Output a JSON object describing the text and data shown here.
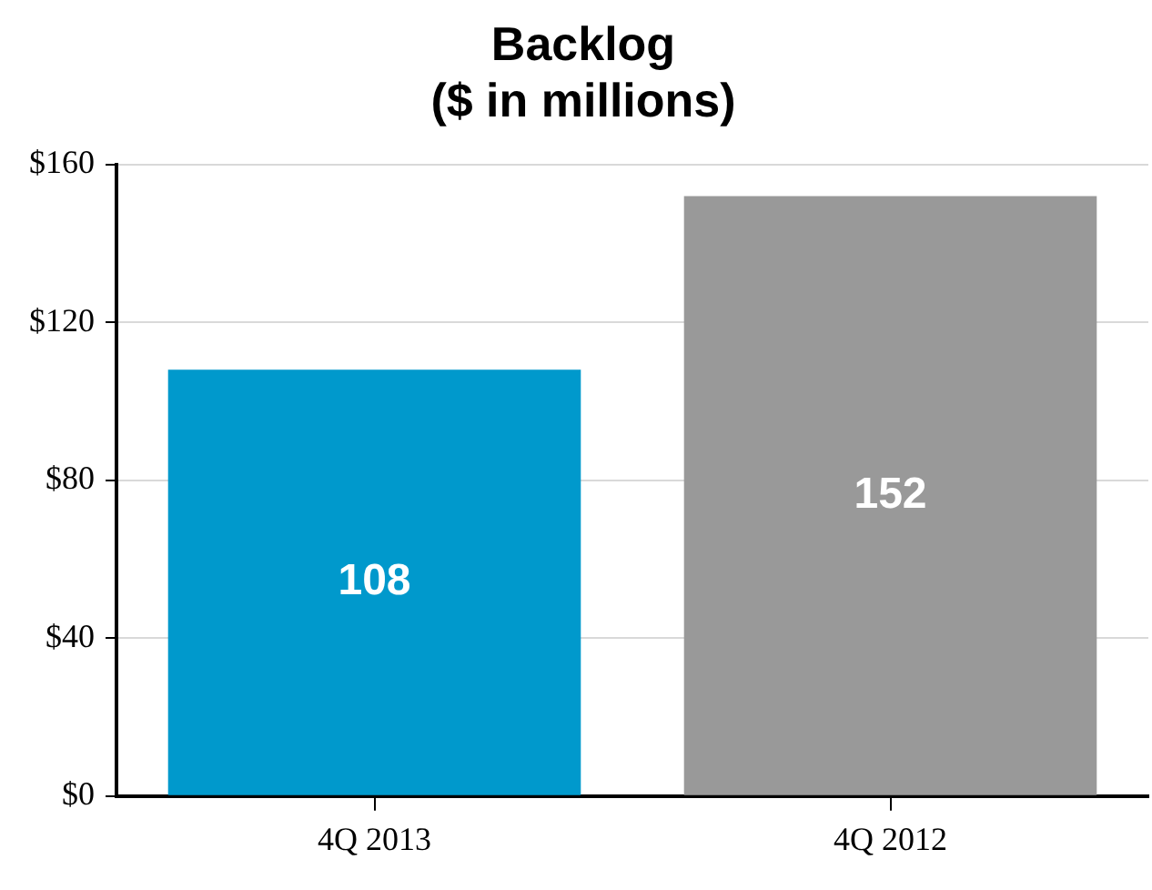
{
  "chart_data": {
    "type": "bar",
    "title": "Backlog",
    "subtitle": "($ in millions)",
    "categories": [
      "4Q 2013",
      "4Q 2012"
    ],
    "values": [
      108,
      152
    ],
    "colors": [
      "#0099cc",
      "#999999"
    ],
    "ylim": [
      0,
      160
    ],
    "yticks": [
      {
        "value": 0,
        "label": "$0"
      },
      {
        "value": 40,
        "label": "$40"
      },
      {
        "value": 80,
        "label": "$80"
      },
      {
        "value": 120,
        "label": "$120"
      },
      {
        "value": 160,
        "label": "$160"
      }
    ],
    "grid": "y",
    "data_labels": true
  }
}
